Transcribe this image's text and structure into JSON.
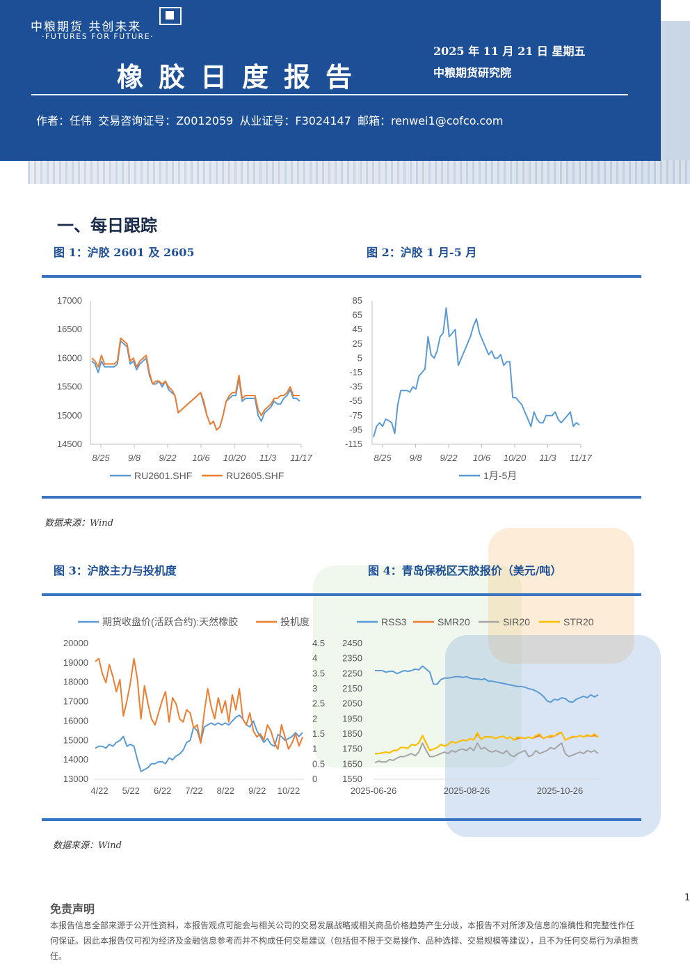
{
  "header": {
    "logo_cn": "中粮期货 共创未来",
    "logo_en": "·FUTURES FOR FUTURE·",
    "title": "橡胶日度报告",
    "date": "2025 年 11 月 21 日 星期五",
    "institute": "中粮期货研究院",
    "author": "作者：任伟  交易咨询证号：Z0012059  从业证号：F3024147  邮箱：renwei1@cofco.com"
  },
  "section_title": "一、每日跟踪",
  "figures": {
    "fig1_title": "图 1：沪胶 2601 及 2605",
    "fig2_title": "图 2：沪胶 1 月-5 月",
    "fig3_title": "图 3：沪胶主力与投机度",
    "fig4_title": "图 4：青岛保税区天胶报价（美元/吨）",
    "source1": "数据来源：Wind",
    "source2": "数据来源：Wind"
  },
  "colors": {
    "brand_blue": "#1d4f96",
    "accent_bar": "#3a73c0",
    "series_blue": "#5b9bd5",
    "series_orange": "#ed7d31",
    "series_gray": "#a5a5a5",
    "series_yellow": "#ffc000"
  },
  "chart_data": [
    {
      "type": "line",
      "title": "",
      "x_ticks": [
        "8/25",
        "9/8",
        "9/22",
        "10/6",
        "10/20",
        "11/3",
        "11/17"
      ],
      "ylim": [
        14500,
        17000
      ],
      "y_ticks": [
        "17000",
        "16500",
        "16000",
        "15500",
        "15000",
        "14500"
      ],
      "series": [
        {
          "name": "RU2601.SHF",
          "color": "#5b9bd5",
          "values": [
            15950,
            15900,
            15750,
            15950,
            15850,
            15850,
            15850,
            15850,
            15900,
            16300,
            16250,
            16200,
            15900,
            15950,
            15800,
            15900,
            15950,
            16000,
            15700,
            15550,
            15550,
            15600,
            15500,
            15600,
            15450,
            15400,
            15350,
            15050,
            15100,
            15150,
            15200,
            15250,
            15300,
            15350,
            15400,
            15200,
            15000,
            14850,
            14900,
            14750,
            14800,
            15000,
            15250,
            15300,
            15350,
            15350,
            15650,
            15250,
            15300,
            15300,
            15300,
            15300,
            15000,
            14900,
            15050,
            15100,
            15150,
            15250,
            15200,
            15200,
            15300,
            15350,
            15450,
            15300,
            15300,
            15250
          ]
        },
        {
          "name": "RU2605.SHF",
          "color": "#ed7d31",
          "values": [
            16000,
            15950,
            15850,
            16050,
            15900,
            15900,
            15900,
            15900,
            15950,
            16350,
            16300,
            16250,
            15950,
            16000,
            15850,
            15950,
            16000,
            16050,
            15750,
            15550,
            15600,
            15600,
            15550,
            15600,
            15500,
            15450,
            15350,
            15050,
            15100,
            15150,
            15200,
            15250,
            15300,
            15350,
            15400,
            15250,
            15000,
            14850,
            14900,
            14750,
            14800,
            15000,
            15250,
            15350,
            15400,
            15400,
            15700,
            15300,
            15350,
            15350,
            15350,
            15350,
            15100,
            15000,
            15100,
            15150,
            15200,
            15300,
            15300,
            15350,
            15350,
            15400,
            15500,
            15350,
            15350,
            15350
          ]
        }
      ]
    },
    {
      "type": "line",
      "title": "",
      "x_ticks": [
        "8/25",
        "9/8",
        "9/22",
        "10/6",
        "10/20",
        "11/3",
        "11/17"
      ],
      "ylim": [
        -115,
        85
      ],
      "y_ticks": [
        "85",
        "65",
        "45",
        "25",
        "5",
        "-15",
        "-35",
        "-55",
        "-75",
        "-95",
        "-115"
      ],
      "series": [
        {
          "name": "1月-5月",
          "color": "#5b9bd5",
          "values": [
            -105,
            -90,
            -85,
            -90,
            -80,
            -82,
            -85,
            -100,
            -60,
            -40,
            -40,
            -40,
            -42,
            -35,
            -38,
            -20,
            -15,
            -10,
            35,
            10,
            5,
            15,
            35,
            40,
            75,
            35,
            40,
            45,
            -5,
            5,
            15,
            25,
            35,
            50,
            60,
            40,
            30,
            20,
            10,
            15,
            5,
            5,
            10,
            -5,
            0,
            0,
            -50,
            -50,
            -55,
            -60,
            -70,
            -80,
            -90,
            -70,
            -80,
            -85,
            -85,
            -75,
            -75,
            -75,
            -70,
            -80,
            -85,
            -80,
            -75,
            -70,
            -90,
            -85,
            -88
          ]
        }
      ]
    },
    {
      "type": "line",
      "title": "",
      "x_ticks": [
        "4/22",
        "5/22",
        "6/22",
        "7/22",
        "8/22",
        "9/22",
        "10/22"
      ],
      "ylim": [
        13000,
        20000
      ],
      "y_ticks": [
        "20000",
        "19000",
        "18000",
        "17000",
        "16000",
        "15000",
        "14000",
        "13000"
      ],
      "y2lim": [
        0,
        4.5
      ],
      "y2_ticks": [
        "4.5",
        "4",
        "3.5",
        "3",
        "2.5",
        "2",
        "1.5",
        "1",
        "0.5",
        "0"
      ],
      "series": [
        {
          "name": "期货收盘价(活跃合约):天然橡胶",
          "color": "#5b9bd5",
          "axis": "left",
          "values": [
            14600,
            14700,
            14700,
            14600,
            14800,
            14700,
            14900,
            15000,
            15200,
            14700,
            14800,
            14700,
            14000,
            13400,
            13500,
            13600,
            13800,
            13800,
            13900,
            13900,
            13800,
            14100,
            14000,
            14200,
            14300,
            14500,
            14900,
            15000,
            15700,
            15500,
            14900,
            15700,
            15800,
            15900,
            15800,
            15900,
            15800,
            15900,
            15800,
            16000,
            16200,
            16300,
            16100,
            15800,
            15700,
            16000,
            15500,
            15200,
            14900,
            15100,
            14800,
            14700,
            15300,
            15200,
            15000,
            15100,
            15200,
            15400,
            15200,
            15400
          ]
        },
        {
          "name": "投机度",
          "color": "#ed7d31",
          "axis": "right",
          "values": [
            3.9,
            4.0,
            3.5,
            3.2,
            3.8,
            3.4,
            2.9,
            3.3,
            2.1,
            2.6,
            3.2,
            4.0,
            3.3,
            2.0,
            3.1,
            2.5,
            2.0,
            1.8,
            2.2,
            2.6,
            2.9,
            1.9,
            2.7,
            2.5,
            2.0,
            1.9,
            2.3,
            2.2,
            1.7,
            1.8,
            1.2,
            2.2,
            3.0,
            2.4,
            2.0,
            2.7,
            2.2,
            2.6,
            1.9,
            2.8,
            2.3,
            3.0,
            2.0,
            1.8,
            2.2,
            1.6,
            1.4,
            1.5,
            1.3,
            1.8,
            1.6,
            1.2,
            1.0,
            1.8,
            1.4,
            1.0,
            1.2,
            1.5,
            1.1,
            1.4
          ]
        }
      ]
    },
    {
      "type": "line",
      "title": "",
      "x_ticks": [
        "2025-06-26",
        "2025-08-26",
        "2025-10-26"
      ],
      "ylim": [
        1550,
        2450
      ],
      "y_ticks": [
        "2450",
        "2350",
        "2250",
        "2150",
        "2050",
        "1950",
        "1850",
        "1750",
        "1650",
        "1550"
      ],
      "series": [
        {
          "name": "RSS3",
          "color": "#5b9bd5",
          "values": [
            2270,
            2270,
            2270,
            2260,
            2265,
            2265,
            2250,
            2260,
            2270,
            2265,
            2270,
            2280,
            2275,
            2300,
            2280,
            2260,
            2180,
            2180,
            2210,
            2220,
            2220,
            2225,
            2230,
            2230,
            2225,
            2230,
            2220,
            2215,
            2215,
            2210,
            2215,
            2200,
            2200,
            2195,
            2190,
            2185,
            2180,
            2175,
            2170,
            2165,
            2165,
            2160,
            2150,
            2145,
            2135,
            2120,
            2100,
            2070,
            2060,
            2080,
            2075,
            2090,
            2085,
            2065,
            2060,
            2080,
            2090,
            2100,
            2090,
            2110,
            2095,
            2110
          ]
        },
        {
          "name": "SMR20",
          "color": "#ed7d31",
          "values": [
            1720,
            1720,
            1725,
            1730,
            1725,
            1740,
            1740,
            1760,
            1760,
            1755,
            1780,
            1775,
            1790,
            1840,
            1790,
            1740,
            1750,
            1760,
            1780,
            1770,
            1780,
            1800,
            1790,
            1800,
            1810,
            1805,
            1820,
            1810,
            1850,
            1815,
            1830,
            1830,
            1830,
            1820,
            1830,
            1835,
            1820,
            1830,
            1810,
            1820,
            1825,
            1820,
            1830,
            1820,
            1830,
            1840,
            1820,
            1830,
            1830,
            1835,
            1850,
            1860,
            1810,
            1820,
            1830,
            1830,
            1840,
            1830,
            1840,
            1835,
            1840,
            1830
          ]
        },
        {
          "name": "SIR20",
          "color": "#a5a5a5",
          "values": [
            1660,
            1670,
            1665,
            1665,
            1680,
            1675,
            1690,
            1700,
            1700,
            1710,
            1720,
            1705,
            1730,
            1790,
            1740,
            1700,
            1700,
            1710,
            1720,
            1730,
            1720,
            1740,
            1730,
            1745,
            1750,
            1740,
            1760,
            1740,
            1790,
            1750,
            1760,
            1740,
            1730,
            1740,
            1730,
            1720,
            1740,
            1710,
            1700,
            1720,
            1730,
            1740,
            1700,
            1710,
            1740,
            1720,
            1730,
            1740,
            1760,
            1750,
            1770,
            1790,
            1720,
            1700,
            1710,
            1720,
            1730,
            1720,
            1740,
            1730,
            1740,
            1720
          ]
        },
        {
          "name": "STR20",
          "color": "#ffc000",
          "values": [
            1720,
            1720,
            1725,
            1730,
            1725,
            1740,
            1740,
            1760,
            1760,
            1755,
            1780,
            1775,
            1790,
            1840,
            1790,
            1740,
            1750,
            1760,
            1780,
            1770,
            1780,
            1800,
            1790,
            1800,
            1810,
            1805,
            1820,
            1810,
            1860,
            1815,
            1830,
            1830,
            1830,
            1820,
            1830,
            1835,
            1820,
            1830,
            1810,
            1830,
            1825,
            1820,
            1830,
            1820,
            1840,
            1850,
            1820,
            1830,
            1840,
            1835,
            1855,
            1860,
            1810,
            1820,
            1835,
            1830,
            1840,
            1830,
            1845,
            1835,
            1850,
            1830
          ]
        }
      ]
    }
  ],
  "disclaimer": {
    "title": "免责声明",
    "body": "本报告信息全部来源于公开性资料，本报告观点可能会与相关公司的交易发展战略或相关商品价格趋势产生分歧，本报告不对所涉及信息的准确性和完整性作任何保证。因此本报告仅可视为经济及金融信息参考而并不构成任何交易建议（包括但不限于交易操作、品种选择、交易规模等建议），且不为任何交易行为承担责任。"
  },
  "page_number": "1"
}
